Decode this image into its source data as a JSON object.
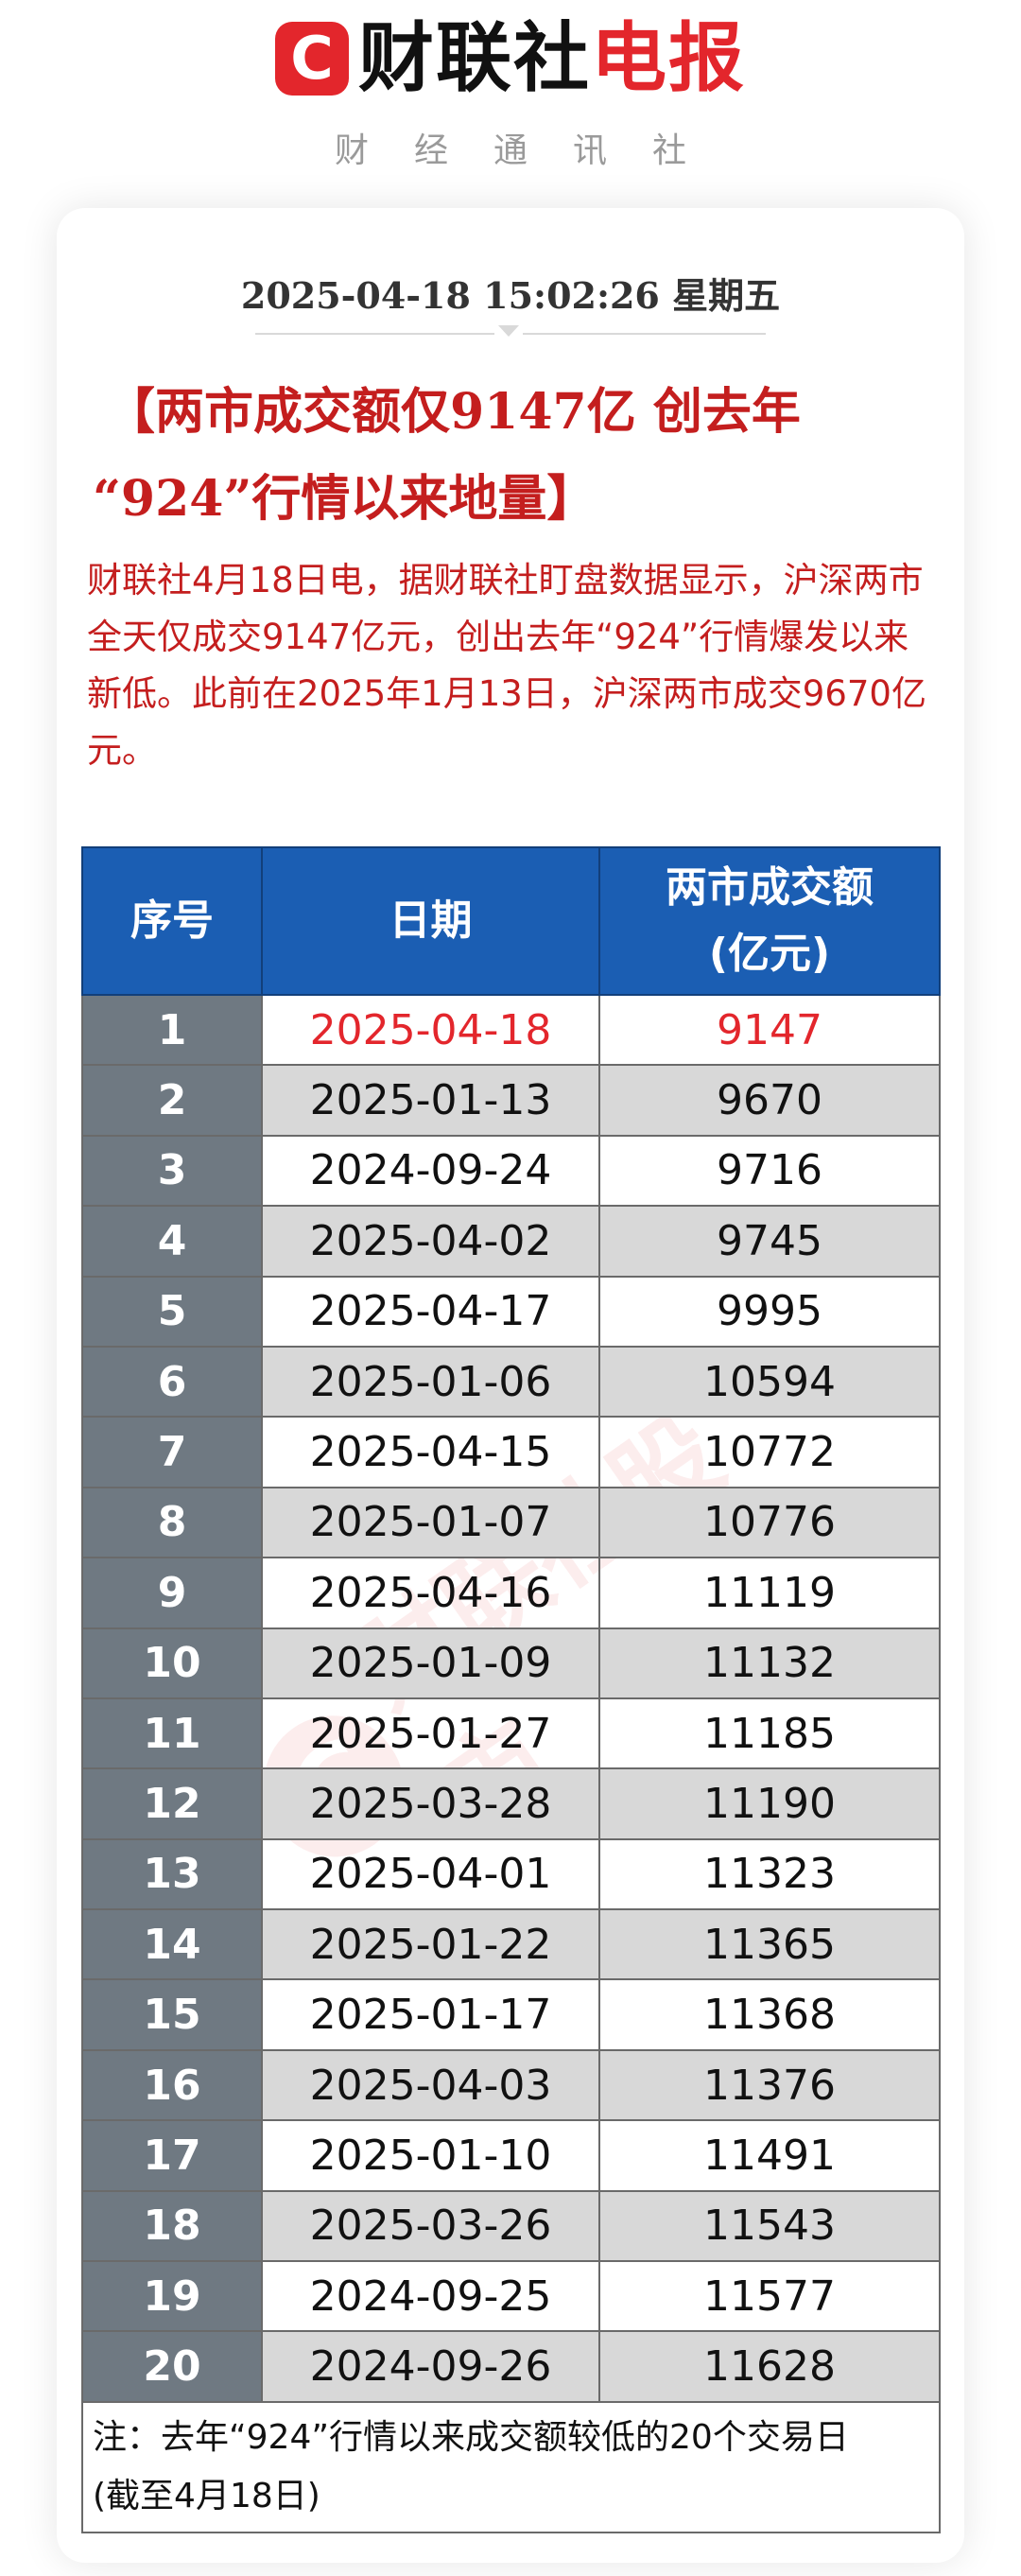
{
  "header": {
    "logo_letter": "C",
    "brand_black": "财联社",
    "brand_red": "电报",
    "subtitle": "财经通讯社"
  },
  "article": {
    "datetime": "2025-04-18 15:02:26 星期五",
    "headline_line1": "【两市成交额仅9147亿 创去年",
    "headline_line2": "“924”行情以来地量】",
    "body": "财联社4月18日电，据财联社盯盘数据显示，沪深两市全天仅成交9147亿元，创出去年“924”行情爆发以来新低。此前在2025年1月13日，沪深两市成交9670亿元。"
  },
  "table": {
    "headers": [
      "序号",
      "日期",
      "两市成交额",
      "(亿元)"
    ],
    "rows": [
      [
        "1",
        "2025-04-18",
        "9147"
      ],
      [
        "2",
        "2025-01-13",
        "9670"
      ],
      [
        "3",
        "2024-09-24",
        "9716"
      ],
      [
        "4",
        "2025-04-02",
        "9745"
      ],
      [
        "5",
        "2025-04-17",
        "9995"
      ],
      [
        "6",
        "2025-01-06",
        "10594"
      ],
      [
        "7",
        "2025-04-15",
        "10772"
      ],
      [
        "8",
        "2025-01-07",
        "10776"
      ],
      [
        "9",
        "2025-04-16",
        "11119"
      ],
      [
        "10",
        "2025-01-09",
        "11132"
      ],
      [
        "11",
        "2025-01-27",
        "11185"
      ],
      [
        "12",
        "2025-03-28",
        "11190"
      ],
      [
        "13",
        "2025-04-01",
        "11323"
      ],
      [
        "14",
        "2025-01-22",
        "11365"
      ],
      [
        "15",
        "2025-01-17",
        "11368"
      ],
      [
        "16",
        "2025-04-03",
        "11376"
      ],
      [
        "17",
        "2025-01-10",
        "11491"
      ],
      [
        "18",
        "2025-03-26",
        "11543"
      ],
      [
        "19",
        "2024-09-25",
        "11577"
      ],
      [
        "20",
        "2024-09-26",
        "11628"
      ]
    ],
    "note_line1": "注：去年“924”行情以来成交额较低的20个交易日",
    "note_line2": "(截至4月18日)"
  },
  "watermark": {
    "letter": "C",
    "text": "财联社股市"
  },
  "colors": {
    "brand_red": "#e3262c",
    "headline_red": "#c41e1e",
    "table_header_blue": "#1b5eb3",
    "index_cell_gray": "#6f7982",
    "alt_row_gray": "#d8d8d8"
  }
}
